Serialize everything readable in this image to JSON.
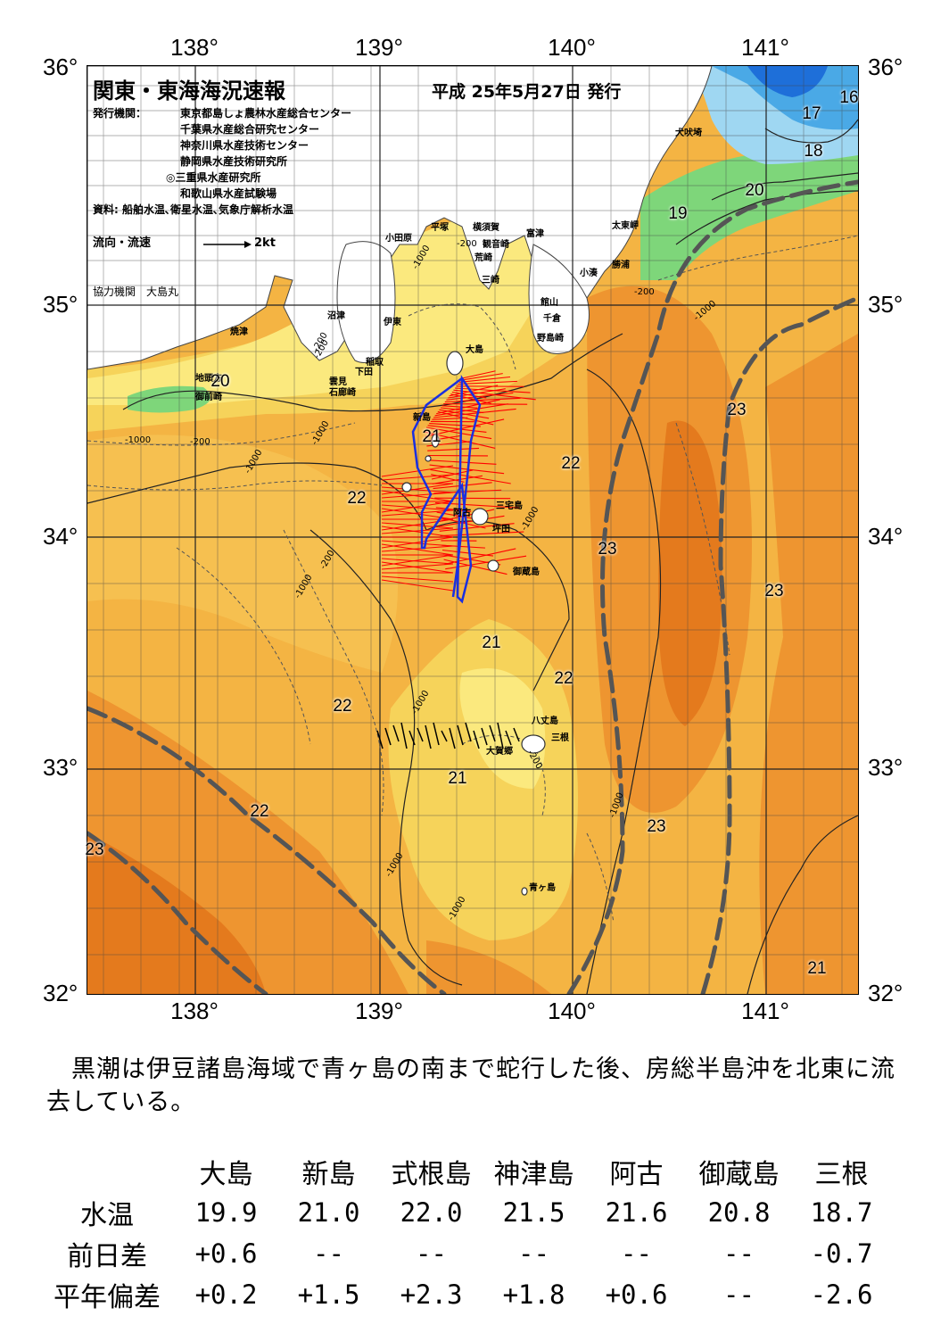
{
  "header": {
    "title": "関東・東海海況速報",
    "date": "平成 25年5月27日 発行",
    "issuer_label": "発行機関：",
    "issuers": [
      "東京都島しょ農林水産総合センター",
      "千葉県水産総合研究センター",
      "神奈川県水産技術センター",
      "静岡県水産技術研究所",
      "◎三重県水産研究所",
      "和歌山県水産試験場"
    ],
    "sources": "資料: 船舶水温､衛星水温､気象庁解析水温",
    "flow_label": "流向・流速",
    "flow_scale": "2kt",
    "coop_label": "協力機関　大島丸"
  },
  "axes": {
    "lon_labels": [
      "138°",
      "139°",
      "140°",
      "141°"
    ],
    "lat_labels": [
      "36°",
      "35°",
      "34°",
      "33°",
      "32°"
    ]
  },
  "places": {
    "inubo": "犬吠埼",
    "taito": "太東岬",
    "katsuura": "勝浦",
    "kominato": "小湊",
    "tomitsu": "富津",
    "kannon": "観音崎",
    "yokosuka": "横須賀",
    "hiratsuka": "平塚",
    "odawara": "小田原",
    "arasaki": "荒崎",
    "misaki": "三崎",
    "tateyama": "館山",
    "chikura": "千倉",
    "nojima": "野島崎",
    "oshima": "大島",
    "numazu": "沼津",
    "ito": "伊東",
    "inatori": "稲取",
    "shimoda": "下田",
    "mera": "雲見",
    "irozaki": "石廊崎",
    "yaizu": "焼津",
    "jitoumuki": "地頭方",
    "omaezaki": "御前崎",
    "niijima": "新島",
    "miyake": "三宅島",
    "tsubota": "坪田",
    "mikura": "御蔵島",
    "hachijo": "八丈島",
    "mine": "三根",
    "okago": "大賀郷",
    "aogashima": "青ヶ島",
    "ako": "阿古"
  },
  "isotherms": [
    "16",
    "17",
    "18",
    "19",
    "20",
    "20",
    "21",
    "22",
    "23",
    "22",
    "23",
    "23",
    "21",
    "22",
    "22",
    "21",
    "22",
    "23",
    "23",
    "21"
  ],
  "depth_labels": [
    "-200",
    "-1000",
    "-1000",
    "-200",
    "-1000",
    "-200",
    "-1000",
    "-200",
    "-1000",
    "-1000",
    "-200",
    "-1000",
    "-1000",
    "-1000",
    "-1000",
    "-200",
    "-1000",
    "-200"
  ],
  "summary": "　黒潮は伊豆諸島海域で青ヶ島の南まで蛇行した後、房総半島沖を北東に流去している。",
  "colors": {
    "cold_blue": "#1e6fd9",
    "mid_blue": "#4aa9e6",
    "light_blue": "#9fd7f2",
    "green": "#7ed67a",
    "pale_yellow": "#fbe97e",
    "yellow": "#f6d35a",
    "light_orange": "#f4b443",
    "orange": "#ee9530",
    "dark_orange": "#e47a1d",
    "kuroshio_axis": "#555555",
    "current_vector": "#ff0000",
    "ship_track": "#1a2fe0"
  },
  "table": {
    "columns": [
      "大島",
      "新島",
      "式根島",
      "神津島",
      "阿古",
      "御蔵島",
      "三根"
    ],
    "rows": [
      {
        "label": "水温",
        "values": [
          "19.9",
          "21.0",
          "22.0",
          "21.5",
          "21.6",
          "20.8",
          "18.7"
        ]
      },
      {
        "label": "前日差",
        "values": [
          "+0.6",
          "--",
          "--",
          "--",
          "--",
          "--",
          "-0.7"
        ]
      },
      {
        "label": "平年偏差",
        "values": [
          "+0.2",
          "+1.5",
          "+2.3",
          "+1.8",
          "+0.6",
          "--",
          "-2.6"
        ]
      }
    ]
  }
}
